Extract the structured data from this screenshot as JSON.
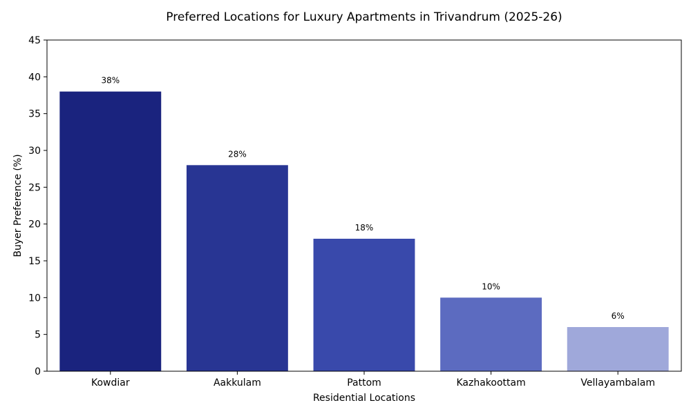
{
  "chart_data": {
    "type": "bar",
    "title": "Preferred Locations for Luxury Apartments in Trivandrum (2025-26)",
    "xlabel": "Residential Locations",
    "ylabel": "Buyer Preference (%)",
    "categories": [
      "Kowdiar",
      "Aakkulam",
      "Pattom",
      "Kazhakoottam",
      "Vellayambalam"
    ],
    "values": [
      38,
      28,
      18,
      10,
      6
    ],
    "data_labels": [
      "38%",
      "28%",
      "18%",
      "10%",
      "6%"
    ],
    "colors": [
      "#1a237e",
      "#283593",
      "#3949ab",
      "#5c6bc0",
      "#9fa8da"
    ],
    "ylim": [
      0,
      45
    ],
    "yticks": [
      0,
      5,
      10,
      15,
      20,
      25,
      30,
      35,
      40,
      45
    ],
    "grid": false
  }
}
